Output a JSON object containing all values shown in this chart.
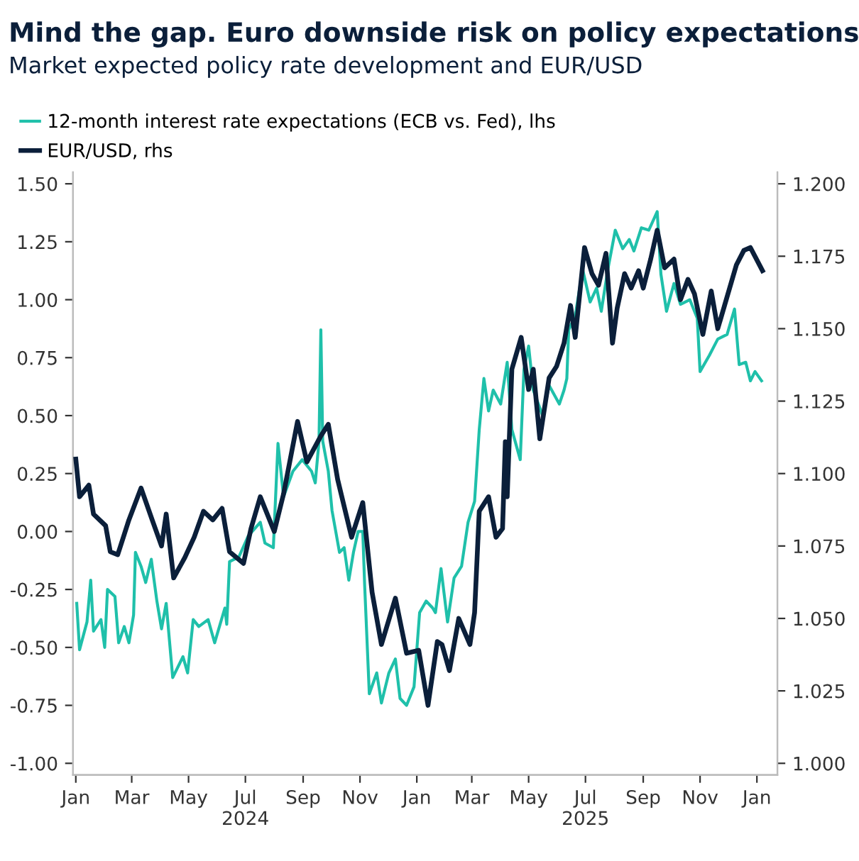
{
  "chart_data": {
    "type": "line",
    "title": "Mind the gap. Euro downside risk on policy expectations",
    "subtitle": "Market expected policy rate development and EUR/USD",
    "legend": "top left",
    "grid": false,
    "xlim": [
      "2023-12-29",
      "2026-01-23"
    ],
    "xticks": [
      {
        "value": "2024-01-01",
        "label": "Jan"
      },
      {
        "value": "2024-03-01",
        "label": "Mar"
      },
      {
        "value": "2024-05-01",
        "label": "May"
      },
      {
        "value": "2024-07-01",
        "label": "Jul\n2024"
      },
      {
        "value": "2024-09-01",
        "label": "Sep"
      },
      {
        "value": "2024-11-01",
        "label": "Nov"
      },
      {
        "value": "2025-01-01",
        "label": "Jan"
      },
      {
        "value": "2025-03-01",
        "label": "Mar"
      },
      {
        "value": "2025-05-01",
        "label": "May"
      },
      {
        "value": "2025-07-01",
        "label": "Jul\n2025"
      },
      {
        "value": "2025-09-01",
        "label": "Sep"
      },
      {
        "value": "2025-11-01",
        "label": "Nov"
      },
      {
        "value": "2026-01-01",
        "label": "Jan"
      }
    ],
    "ylim": [
      -1.05,
      1.55
    ],
    "yticks": [
      {
        "value": -1,
        "label": "-1.00"
      },
      {
        "value": -0.75,
        "label": "-0.75"
      },
      {
        "value": -0.5,
        "label": "-0.50"
      },
      {
        "value": -0.25,
        "label": "-0.25"
      },
      {
        "value": 0,
        "label": "0.00"
      },
      {
        "value": 0.25,
        "label": "0.25"
      },
      {
        "value": 0.5,
        "label": "0.50"
      },
      {
        "value": 0.75,
        "label": "0.75"
      },
      {
        "value": 1,
        "label": "1.00"
      },
      {
        "value": 1.25,
        "label": "1.25"
      },
      {
        "value": 1.5,
        "label": "1.50"
      }
    ],
    "y2lim": [
      0.996,
      1.204
    ],
    "y2ticks": [
      {
        "value": 1,
        "label": "1.000"
      },
      {
        "value": 1.025,
        "label": "1.025"
      },
      {
        "value": 1.05,
        "label": "1.050"
      },
      {
        "value": 1.075,
        "label": "1.075"
      },
      {
        "value": 1.1,
        "label": "1.100"
      },
      {
        "value": 1.125,
        "label": "1.125"
      },
      {
        "value": 1.15,
        "label": "1.150"
      },
      {
        "value": 1.175,
        "label": "1.175"
      },
      {
        "value": 1.2,
        "label": "1.200"
      }
    ],
    "series": [
      {
        "name": "12-month interest rate expectations (ECB vs. Fed), lhs",
        "color": "#1fc0aa",
        "x": [
          "2024-01-02",
          "2024-01-05",
          "2024-01-13",
          "2024-01-17",
          "2024-01-20",
          "2024-01-28",
          "2024-02-01",
          "2024-02-04",
          "2024-02-12",
          "2024-02-16",
          "2024-02-22",
          "2024-02-27",
          "2024-03-03",
          "2024-03-05",
          "2024-03-11",
          "2024-03-16",
          "2024-03-22",
          "2024-03-28",
          "2024-04-02",
          "2024-04-07",
          "2024-04-14",
          "2024-04-25",
          "2024-04-30",
          "2024-05-06",
          "2024-05-12",
          "2024-05-22",
          "2024-05-29",
          "2024-06-09",
          "2024-06-11",
          "2024-06-14",
          "2024-06-24",
          "2024-07-04",
          "2024-07-17",
          "2024-07-22",
          "2024-07-31",
          "2024-08-05",
          "2024-08-11",
          "2024-08-21",
          "2024-08-31",
          "2024-09-10",
          "2024-09-14",
          "2024-09-18",
          "2024-09-20",
          "2024-09-22",
          "2024-09-28",
          "2024-10-02",
          "2024-10-10",
          "2024-10-15",
          "2024-10-20",
          "2024-10-25",
          "2024-10-30",
          "2024-11-04",
          "2024-11-06",
          "2024-11-11",
          "2024-11-19",
          "2024-11-24",
          "2024-12-02",
          "2024-12-09",
          "2024-12-14",
          "2024-12-21",
          "2024-12-29",
          "2025-01-04",
          "2025-01-11",
          "2025-01-18",
          "2025-01-21",
          "2025-01-27",
          "2025-02-03",
          "2025-02-10",
          "2025-02-18",
          "2025-02-25",
          "2025-03-04",
          "2025-03-09",
          "2025-03-14",
          "2025-03-19",
          "2025-03-24",
          "2025-04-01",
          "2025-04-08",
          "2025-04-13",
          "2025-04-22",
          "2025-04-26",
          "2025-05-01",
          "2025-05-06",
          "2025-05-16",
          "2025-05-23",
          "2025-06-03",
          "2025-06-08",
          "2025-06-11",
          "2025-06-13",
          "2025-06-20",
          "2025-06-28",
          "2025-07-06",
          "2025-07-13",
          "2025-07-18",
          "2025-07-25",
          "2025-08-02",
          "2025-08-10",
          "2025-08-17",
          "2025-08-22",
          "2025-08-30",
          "2025-09-07",
          "2025-09-16",
          "2025-09-20",
          "2025-09-26",
          "2025-10-04",
          "2025-10-11",
          "2025-10-21",
          "2025-10-29",
          "2025-11-01",
          "2025-11-11",
          "2025-11-20",
          "2025-11-30",
          "2025-12-08",
          "2025-12-13",
          "2025-12-20",
          "2025-12-25",
          "2025-12-30",
          "2026-01-06"
        ],
        "values": [
          -0.31,
          -0.51,
          -0.39,
          -0.21,
          -0.43,
          -0.38,
          -0.5,
          -0.25,
          -0.28,
          -0.48,
          -0.41,
          -0.48,
          -0.36,
          -0.09,
          -0.15,
          -0.22,
          -0.12,
          -0.3,
          -0.42,
          -0.31,
          -0.63,
          -0.54,
          -0.61,
          -0.38,
          -0.41,
          -0.38,
          -0.48,
          -0.33,
          -0.4,
          -0.13,
          -0.11,
          -0.02,
          0.04,
          -0.05,
          -0.07,
          0.38,
          0.15,
          0.26,
          0.31,
          0.26,
          0.21,
          0.39,
          0.87,
          0.39,
          0.26,
          0.09,
          -0.09,
          -0.07,
          -0.21,
          -0.09,
          0,
          0,
          -0.23,
          -0.7,
          -0.61,
          -0.74,
          -0.61,
          -0.55,
          -0.72,
          -0.75,
          -0.67,
          -0.35,
          -0.3,
          -0.33,
          -0.35,
          -0.16,
          -0.39,
          -0.2,
          -0.15,
          0.04,
          0.13,
          0.44,
          0.66,
          0.52,
          0.61,
          0.55,
          0.73,
          0.44,
          0.31,
          0.7,
          0.8,
          0.61,
          0.5,
          0.63,
          0.55,
          0.61,
          0.66,
          0.87,
          0.93,
          1.13,
          0.99,
          1.05,
          0.95,
          1.13,
          1.3,
          1.22,
          1.26,
          1.21,
          1.31,
          1.3,
          1.38,
          1.11,
          0.95,
          1.07,
          0.98,
          1.0,
          0.92,
          0.69,
          0.76,
          0.83,
          0.85,
          0.96,
          0.72,
          0.73,
          0.65,
          0.69,
          0.65
        ]
      },
      {
        "name": "EUR/USD, rhs",
        "color": "#0b1f3a",
        "axis": "y2",
        "x": [
          "2024-01-01",
          "2024-01-05",
          "2024-01-15",
          "2024-01-20",
          "2024-02-02",
          "2024-02-07",
          "2024-02-15",
          "2024-02-27",
          "2024-03-11",
          "2024-03-23",
          "2024-04-02",
          "2024-04-07",
          "2024-04-15",
          "2024-04-27",
          "2024-05-07",
          "2024-05-17",
          "2024-05-27",
          "2024-06-06",
          "2024-06-14",
          "2024-06-29",
          "2024-07-07",
          "2024-07-17",
          "2024-08-01",
          "2024-08-11",
          "2024-08-26",
          "2024-09-05",
          "2024-09-20",
          "2024-09-28",
          "2024-10-08",
          "2024-10-23",
          "2024-11-04",
          "2024-11-14",
          "2024-11-24",
          "2024-12-09",
          "2024-12-21",
          "2025-01-03",
          "2025-01-13",
          "2025-01-23",
          "2025-01-28",
          "2025-02-05",
          "2025-02-15",
          "2025-02-27",
          "2025-03-04",
          "2025-03-09",
          "2025-03-19",
          "2025-03-27",
          "2025-04-03",
          "2025-04-06",
          "2025-04-08",
          "2025-04-13",
          "2025-04-23",
          "2025-05-01",
          "2025-05-06",
          "2025-05-13",
          "2025-05-23",
          "2025-05-31",
          "2025-06-08",
          "2025-06-15",
          "2025-06-20",
          "2025-06-30",
          "2025-07-08",
          "2025-07-15",
          "2025-07-23",
          "2025-07-30",
          "2025-08-04",
          "2025-08-12",
          "2025-08-19",
          "2025-08-27",
          "2025-09-01",
          "2025-09-09",
          "2025-09-16",
          "2025-09-24",
          "2025-10-04",
          "2025-10-11",
          "2025-10-19",
          "2025-10-26",
          "2025-11-04",
          "2025-11-13",
          "2025-11-20",
          "2025-11-30",
          "2025-12-10",
          "2025-12-18",
          "2025-12-25",
          "2026-01-07"
        ],
        "values": [
          1.105,
          1.092,
          1.096,
          1.086,
          1.082,
          1.073,
          1.072,
          1.084,
          1.095,
          1.084,
          1.075,
          1.086,
          1.064,
          1.071,
          1.078,
          1.087,
          1.084,
          1.088,
          1.073,
          1.069,
          1.081,
          1.092,
          1.08,
          1.093,
          1.118,
          1.104,
          1.113,
          1.117,
          1.098,
          1.078,
          1.09,
          1.059,
          1.041,
          1.057,
          1.038,
          1.039,
          1.02,
          1.042,
          1.041,
          1.032,
          1.05,
          1.041,
          1.052,
          1.087,
          1.092,
          1.078,
          1.081,
          1.111,
          1.092,
          1.136,
          1.147,
          1.129,
          1.136,
          1.112,
          1.133,
          1.137,
          1.145,
          1.158,
          1.147,
          1.178,
          1.169,
          1.165,
          1.176,
          1.145,
          1.157,
          1.169,
          1.164,
          1.17,
          1.164,
          1.174,
          1.184,
          1.171,
          1.174,
          1.16,
          1.167,
          1.162,
          1.148,
          1.163,
          1.15,
          1.161,
          1.172,
          1.177,
          1.178,
          1.17
        ]
      }
    ]
  }
}
